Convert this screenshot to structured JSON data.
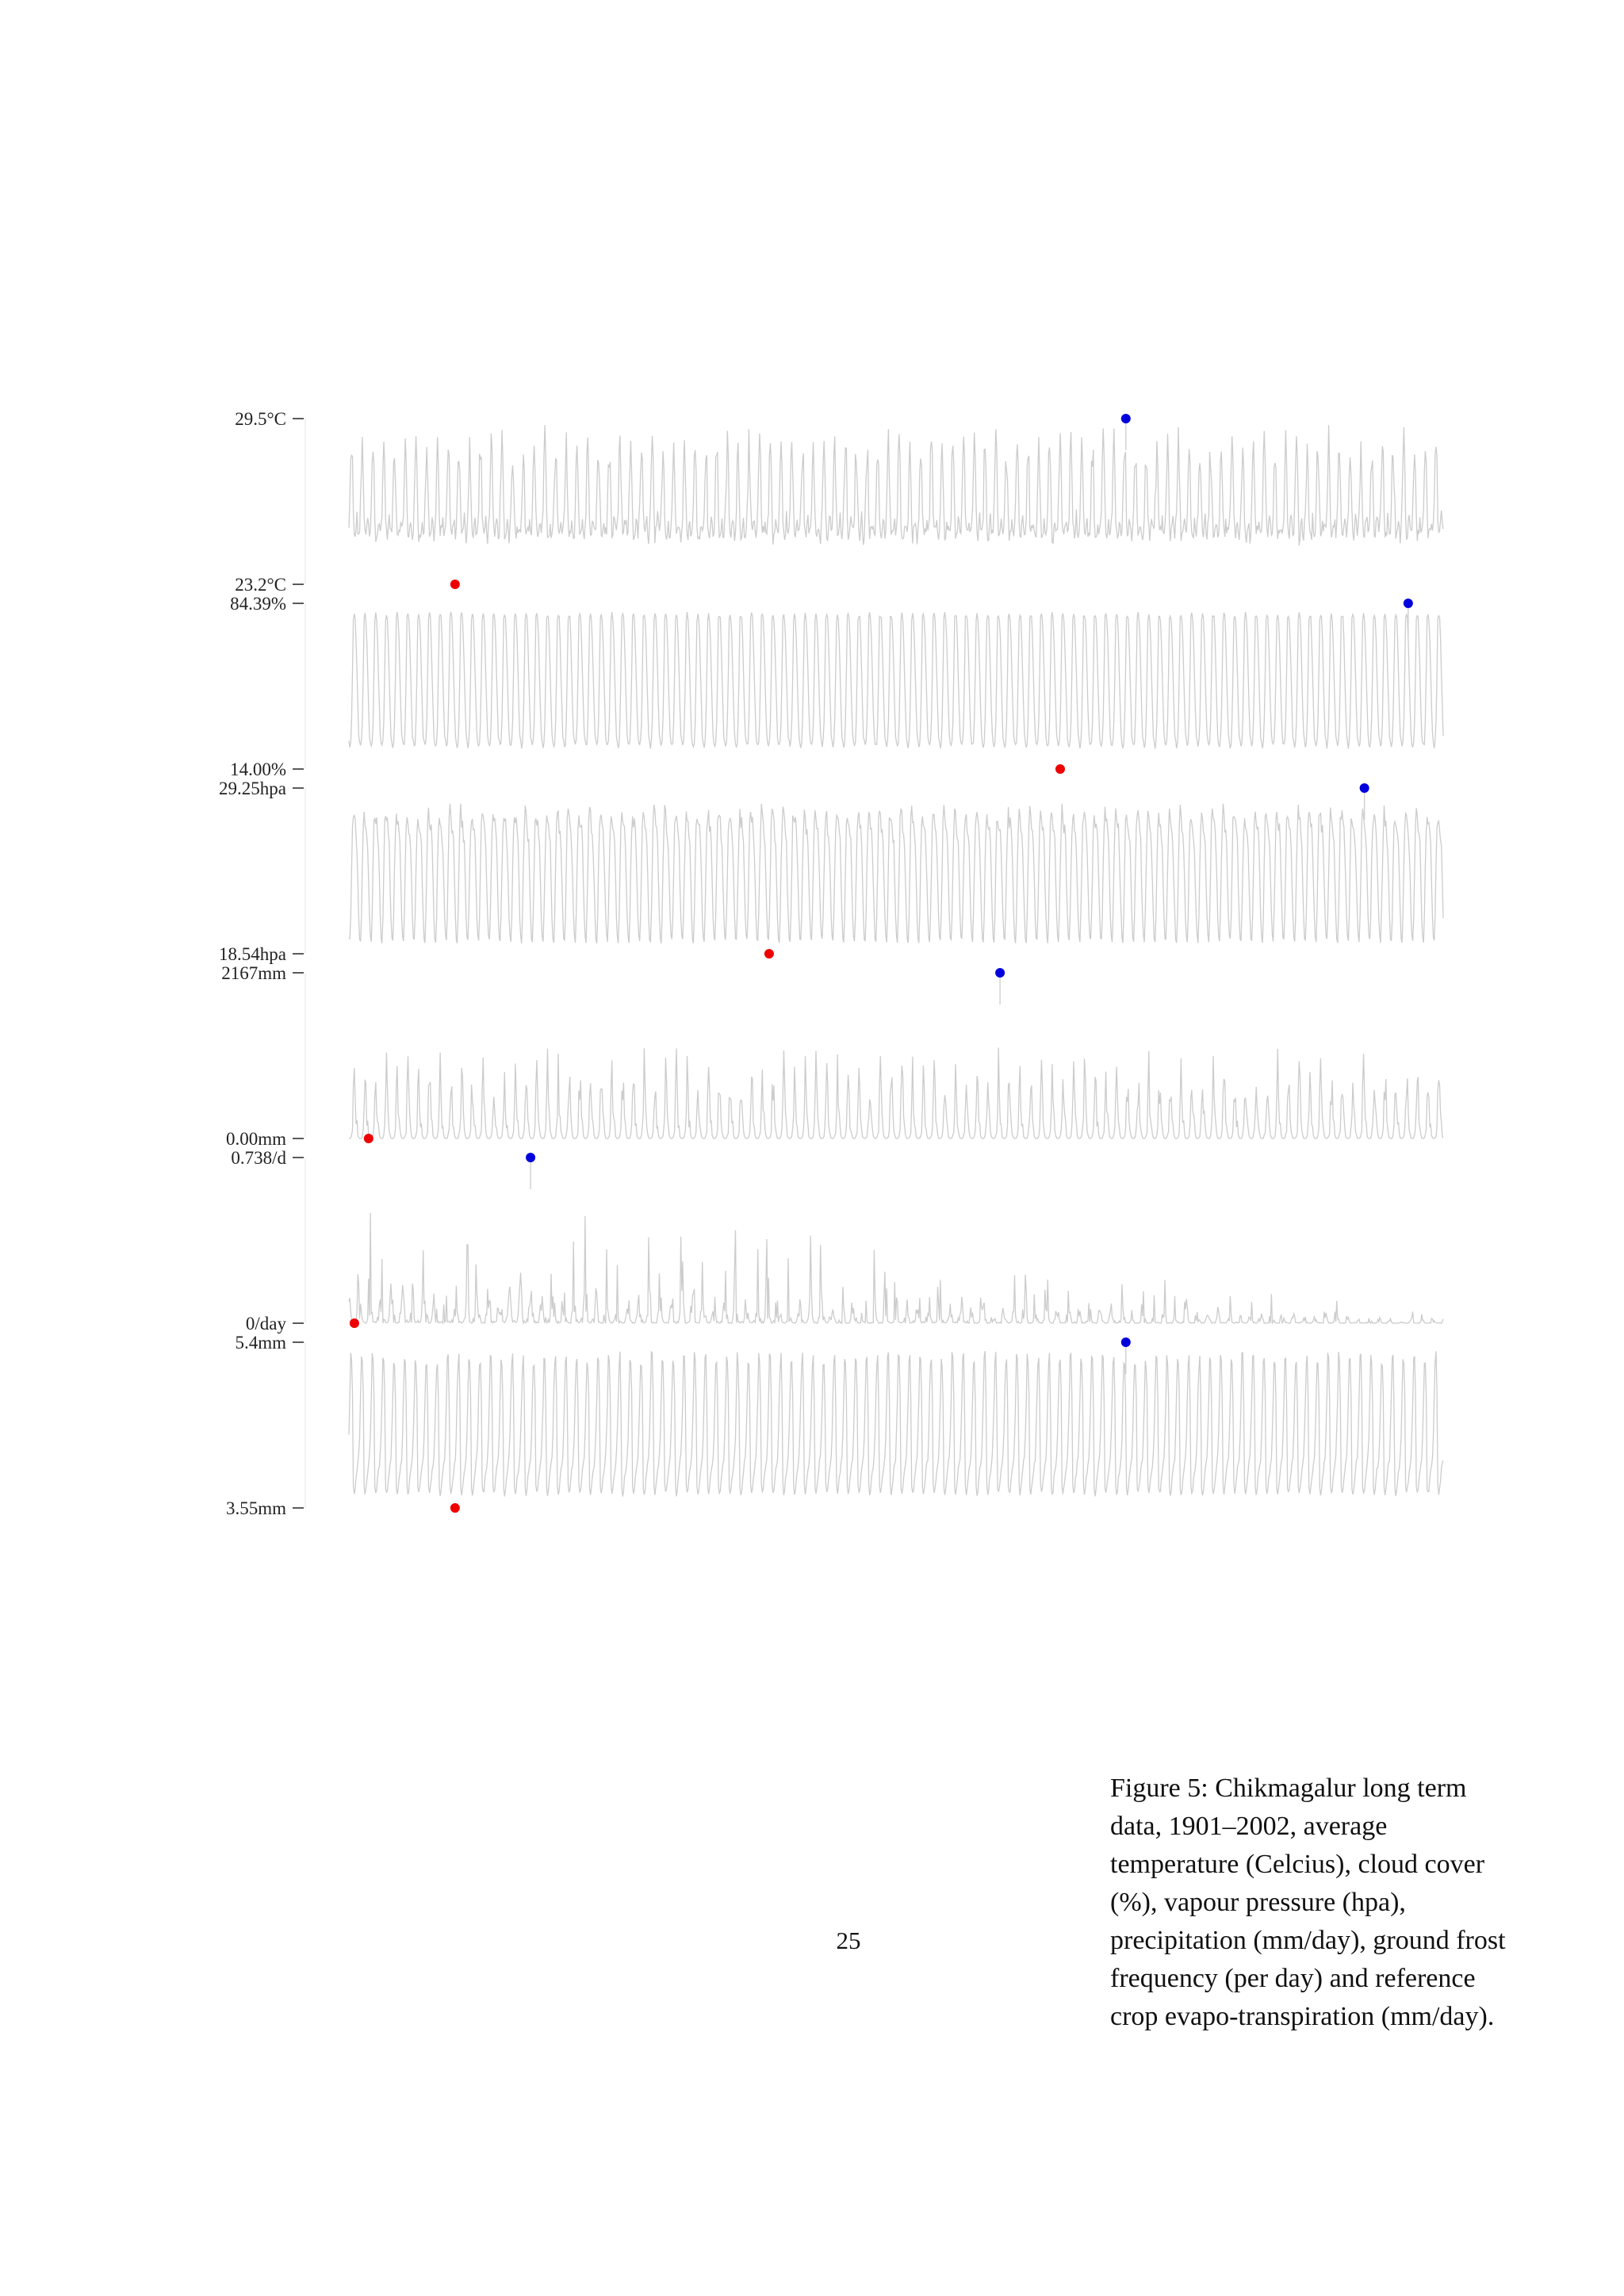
{
  "chart_data": {
    "type": "line",
    "period": "1901–2002",
    "series_color": "#cccccc",
    "max_marker_color": "#0000dd",
    "min_marker_color": "#ee0000",
    "panels": [
      {
        "name": "average temperature",
        "max_label": "29.5°C",
        "min_label": "23.2°C",
        "max": 29.5,
        "min": 23.2,
        "shape": "temperature",
        "max_at": 0.71,
        "min_at": 0.097
      },
      {
        "name": "cloud cover",
        "max_label": "84.39%",
        "min_label": "14.00%",
        "max": 84.39,
        "min": 14.0,
        "shape": "cloud",
        "max_at": 0.968,
        "min_at": 0.65
      },
      {
        "name": "vapour pressure",
        "max_label": "29.25hpa",
        "min_label": "18.54hpa",
        "max": 29.25,
        "min": 18.54,
        "shape": "vapour",
        "max_at": 0.928,
        "min_at": 0.384
      },
      {
        "name": "precipitation",
        "max_label": "2167mm",
        "min_label": "0.00mm",
        "max": 2167,
        "min": 0.0,
        "shape": "precip",
        "max_at": 0.595,
        "min_at": 0.018
      },
      {
        "name": "ground frost frequency",
        "max_label": "0.738/d",
        "min_label": "0/day",
        "max": 0.738,
        "min": 0,
        "shape": "frost",
        "max_at": 0.166,
        "min_at": 0.005
      },
      {
        "name": "reference crop evapotranspiration",
        "max_label": "5.4mm",
        "min_label": "3.55mm",
        "max": 5.4,
        "min": 3.55,
        "shape": "evapo",
        "max_at": 0.71,
        "min_at": 0.097
      }
    ]
  },
  "page": {
    "number": "25"
  },
  "caption": {
    "text": "Figure 5: Chikmagalur long term data, 1901–2002, average temperature (Celcius), cloud cover (%), vapour pressure (hpa), precipitation (mm/day), ground frost frequency (per day) and reference crop evapo-transpiration (mm/day)."
  }
}
